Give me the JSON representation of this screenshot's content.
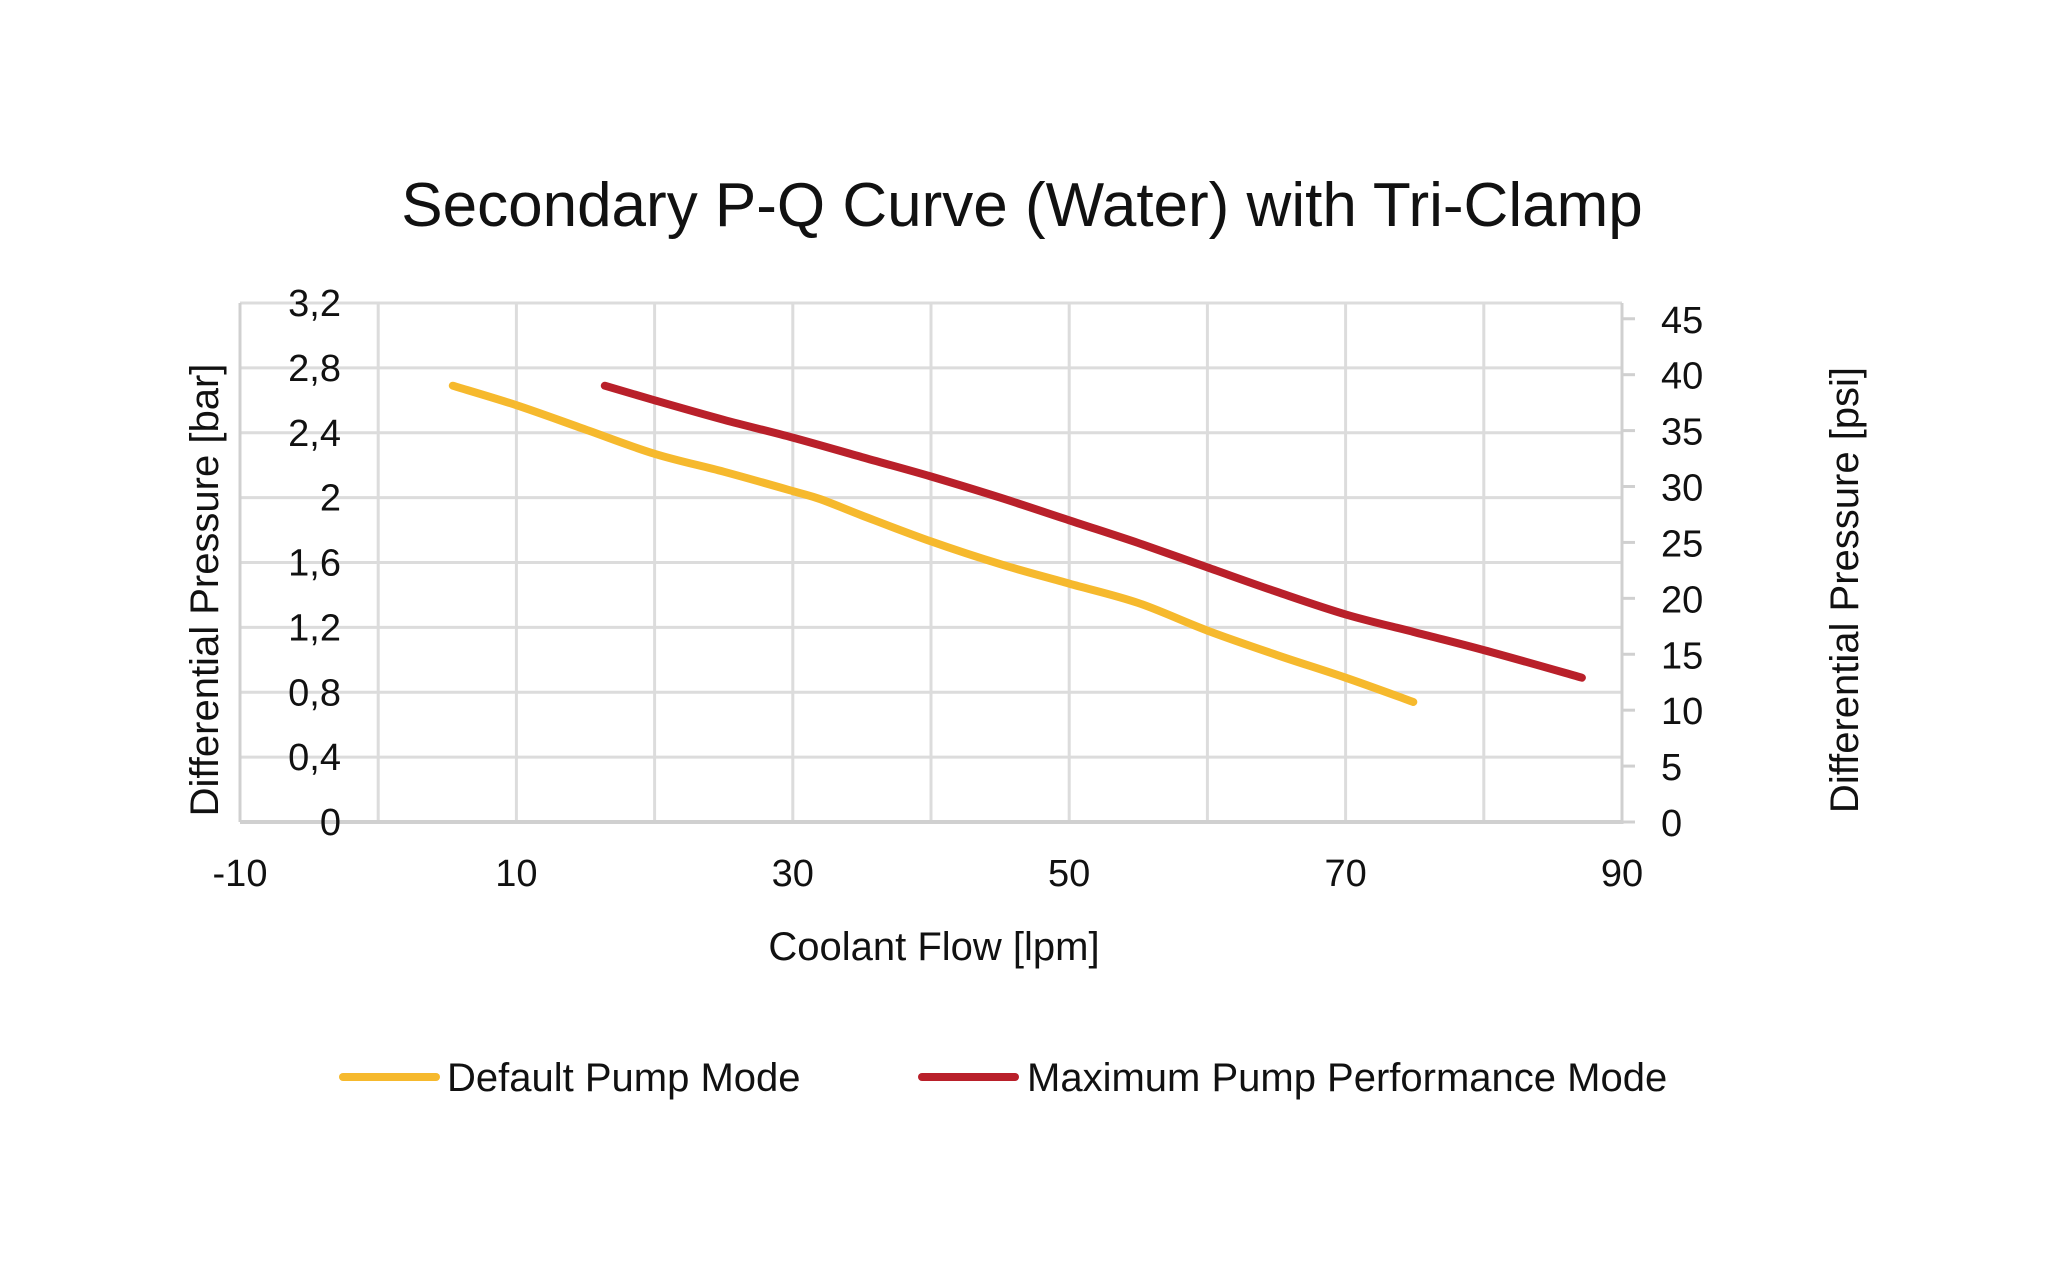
{
  "chart_data": {
    "type": "line",
    "title": "Secondary P-Q Curve (Water) with Tri-Clamp",
    "xlabel": "Coolant Flow [lpm]",
    "ylabel": "Differential Pressure [bar]",
    "y2label": "Differential Pressure [psi]",
    "xlim": [
      -10,
      90
    ],
    "ylim": [
      0,
      3.2
    ],
    "y2lim": [
      0,
      46.41
    ],
    "x_gridlines": [
      -10,
      0,
      10,
      20,
      30,
      40,
      50,
      60,
      70,
      80,
      90
    ],
    "x_tick_labels": [
      {
        "value": -10,
        "label": "-10"
      },
      {
        "value": 10,
        "label": "10"
      },
      {
        "value": 30,
        "label": "30"
      },
      {
        "value": 50,
        "label": "50"
      },
      {
        "value": 70,
        "label": "70"
      },
      {
        "value": 90,
        "label": "90"
      }
    ],
    "y_ticks": [
      {
        "value": 0,
        "label": "0"
      },
      {
        "value": 0.4,
        "label": "0,4"
      },
      {
        "value": 0.8,
        "label": "0,8"
      },
      {
        "value": 1.2,
        "label": "1,2"
      },
      {
        "value": 1.6,
        "label": "1,6"
      },
      {
        "value": 2.0,
        "label": "2"
      },
      {
        "value": 2.4,
        "label": "2,4"
      },
      {
        "value": 2.8,
        "label": "2,8"
      },
      {
        "value": 3.2,
        "label": "3,2"
      }
    ],
    "y2_ticks": [
      {
        "value": 0,
        "label": "0"
      },
      {
        "value": 5,
        "label": "5"
      },
      {
        "value": 10,
        "label": "10"
      },
      {
        "value": 15,
        "label": "15"
      },
      {
        "value": 20,
        "label": "20"
      },
      {
        "value": 25,
        "label": "25"
      },
      {
        "value": 30,
        "label": "30"
      },
      {
        "value": 35,
        "label": "35"
      },
      {
        "value": 40,
        "label": "40"
      },
      {
        "value": 45,
        "label": "45"
      }
    ],
    "grid": true,
    "legend_position": "bottom",
    "series": [
      {
        "name": "Default Pump Mode",
        "color": "#F6B92D",
        "points": [
          [
            5.4,
            2.69
          ],
          [
            10,
            2.57
          ],
          [
            15,
            2.42
          ],
          [
            20,
            2.27
          ],
          [
            25,
            2.16
          ],
          [
            30,
            2.04
          ],
          [
            32,
            1.99
          ],
          [
            35,
            1.89
          ],
          [
            40,
            1.73
          ],
          [
            45,
            1.59
          ],
          [
            50,
            1.47
          ],
          [
            55,
            1.35
          ],
          [
            60,
            1.18
          ],
          [
            65,
            1.03
          ],
          [
            70,
            0.89
          ],
          [
            74.9,
            0.74
          ]
        ]
      },
      {
        "name": "Maximum Pump Performance Mode",
        "color": "#B9202A",
        "points": [
          [
            16.4,
            2.69
          ],
          [
            20,
            2.6
          ],
          [
            25,
            2.48
          ],
          [
            30,
            2.37
          ],
          [
            35,
            2.25
          ],
          [
            40,
            2.13
          ],
          [
            45,
            2.0
          ],
          [
            50,
            1.86
          ],
          [
            55,
            1.72
          ],
          [
            60,
            1.57
          ],
          [
            65,
            1.42
          ],
          [
            70,
            1.28
          ],
          [
            75,
            1.17
          ],
          [
            80,
            1.06
          ],
          [
            87.1,
            0.89
          ]
        ]
      }
    ]
  }
}
